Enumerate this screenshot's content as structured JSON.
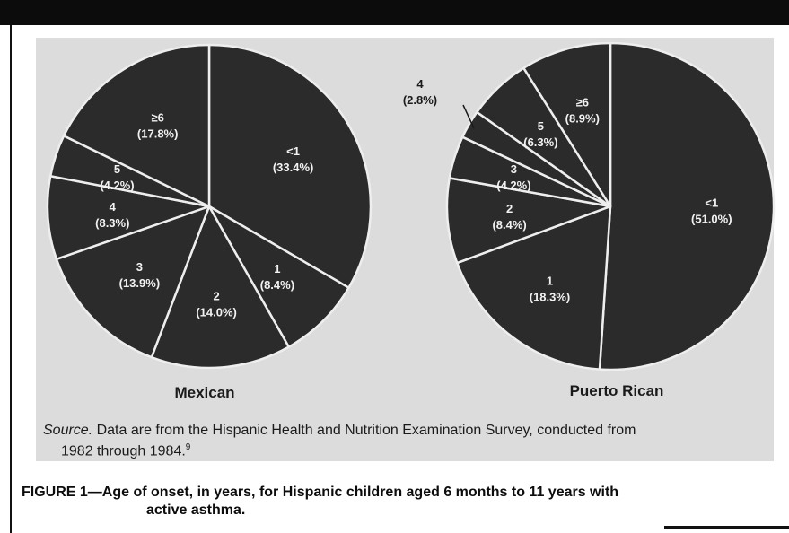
{
  "chart_data": [
    {
      "type": "pie",
      "title": "Mexican",
      "slices": [
        {
          "label": "<1",
          "value": 33.4,
          "value_text": "(33.4%)"
        },
        {
          "label": "1",
          "value": 8.4,
          "value_text": "(8.4%)"
        },
        {
          "label": "2",
          "value": 14.0,
          "value_text": "(14.0%)"
        },
        {
          "label": "3",
          "value": 13.9,
          "value_text": "(13.9%)"
        },
        {
          "label": "4",
          "value": 8.3,
          "value_text": "(8.3%)"
        },
        {
          "label": "5",
          "value": 4.2,
          "value_text": "(4.2%)"
        },
        {
          "label": "≥6",
          "value": 17.8,
          "value_text": "(17.8%)"
        }
      ],
      "colors": {
        "fill": "#2b2b2b",
        "divider": "#eeeeee"
      }
    },
    {
      "type": "pie",
      "title": "Puerto Rican",
      "slices": [
        {
          "label": "<1",
          "value": 51.0,
          "value_text": "(51.0%)"
        },
        {
          "label": "1",
          "value": 18.3,
          "value_text": "(18.3%)"
        },
        {
          "label": "2",
          "value": 8.4,
          "value_text": "(8.4%)"
        },
        {
          "label": "3",
          "value": 4.2,
          "value_text": "(4.2%)"
        },
        {
          "label": "4",
          "value": 2.8,
          "value_text": "(2.8%)"
        },
        {
          "label": "5",
          "value": 6.3,
          "value_text": "(6.3%)"
        },
        {
          "label": "≥6",
          "value": 8.9,
          "value_text": "(8.9%)"
        }
      ],
      "colors": {
        "fill": "#2b2b2b",
        "divider": "#eeeeee"
      }
    }
  ],
  "source": {
    "label": "Source.",
    "text_line1": "Data are from the Hispanic Health and Nutrition Examination Survey, conducted from",
    "text_line2": "1982 through 1984.",
    "ref": "9"
  },
  "caption": {
    "line1": "FIGURE 1—Age of onset, in years, for Hispanic children aged 6 months to 11 years with",
    "line2": "active asthma."
  }
}
